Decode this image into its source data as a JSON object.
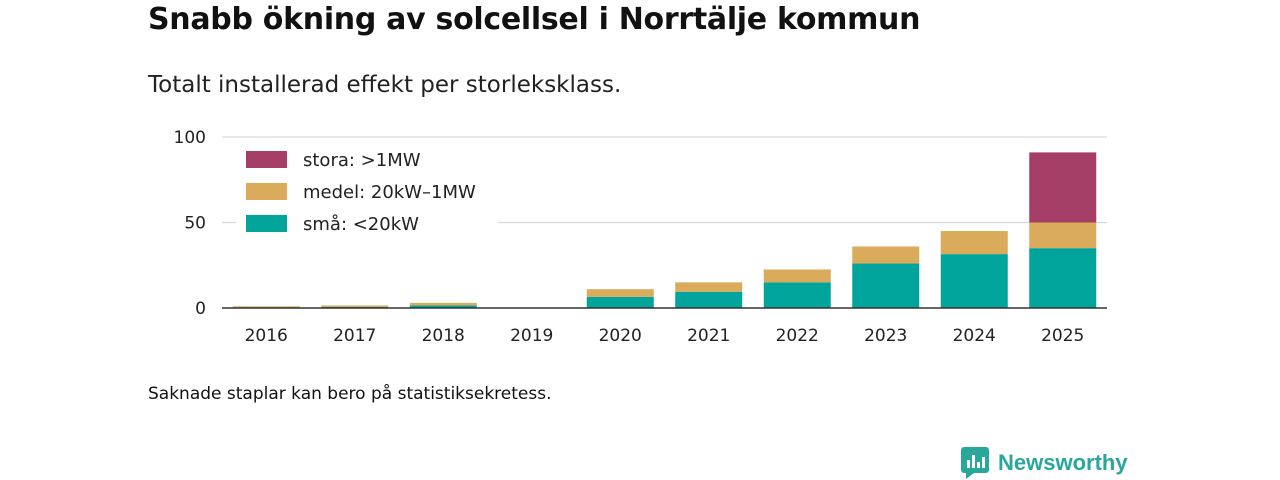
{
  "header": {
    "title": "Snabb ökning av solcellsel i Norrtälje kommun",
    "subtitle": "Totalt installerad effekt per storleksklass."
  },
  "footer": {
    "note": "Saknade staplar kan bero på statistiksekretess.",
    "brand": "Newsworthy",
    "brand_icon": "newsworthy-logo-icon",
    "brand_color": "#2aa79b"
  },
  "chart_data": {
    "type": "bar",
    "stacked": true,
    "title": "Snabb ökning av solcellsel i Norrtälje kommun",
    "subtitle": "Totalt installerad effekt per storleksklass.",
    "xlabel": "",
    "ylabel": "",
    "ylim": [
      0,
      100
    ],
    "yticks": [
      0,
      50,
      100
    ],
    "grid": true,
    "legend_position": "top-left",
    "categories": [
      "2016",
      "2017",
      "2018",
      "2019",
      "2020",
      "2021",
      "2022",
      "2023",
      "2024",
      "2025"
    ],
    "series": [
      {
        "name": "små: <20kW",
        "color": "#00a49a",
        "values": [
          0.3,
          0.6,
          1.5,
          null,
          6.5,
          9.5,
          15,
          26,
          31.5,
          35
        ]
      },
      {
        "name": "medel: 20kW–1MW",
        "color": "#d9ab5a",
        "values": [
          0.7,
          0.9,
          1.5,
          null,
          4.5,
          5.5,
          7.5,
          10,
          13.5,
          15
        ]
      },
      {
        "name": "stora: >1MW",
        "color": "#a63f68",
        "values": [
          0,
          0,
          0,
          null,
          0,
          0,
          0,
          0,
          0,
          41
        ]
      }
    ]
  }
}
